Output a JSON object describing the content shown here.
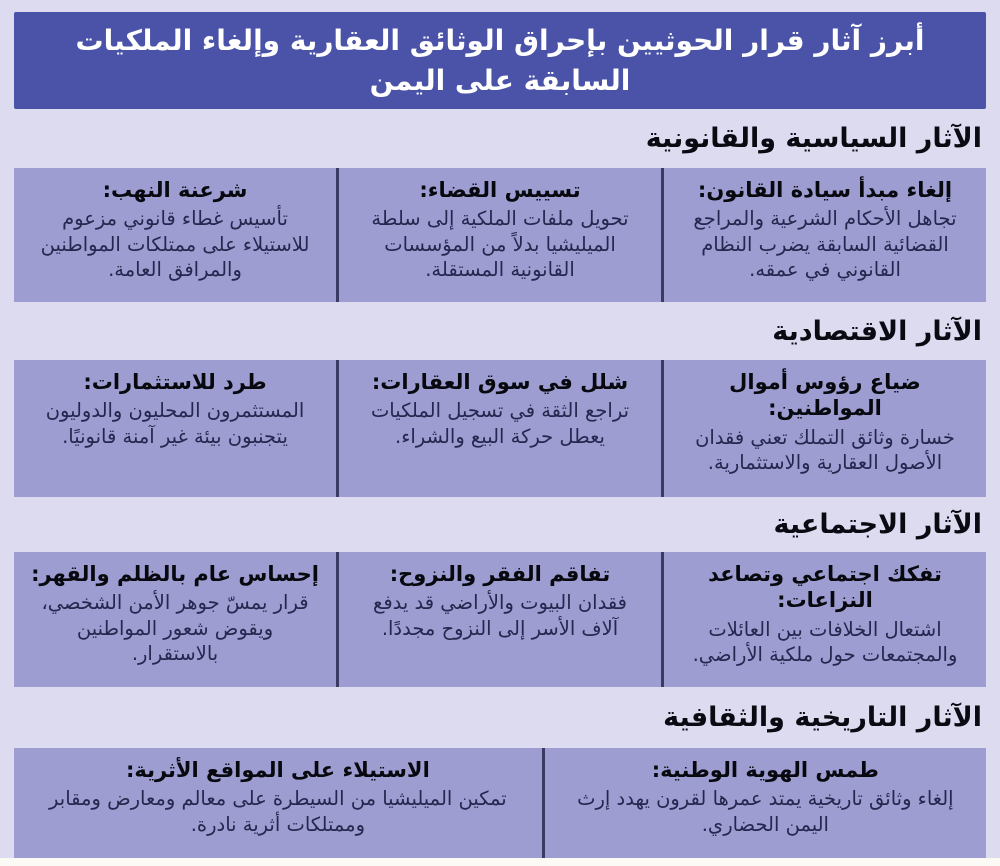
{
  "header": {
    "title": "أبرز آثار قرار الحوثيين بإحراق الوثائق العقارية وإلغاء الملكيات السابقة على اليمن"
  },
  "sections": [
    {
      "heading": "الآثار السياسية والقانونية",
      "cards": [
        {
          "title": "إلغاء مبدأ سيادة القانون:",
          "body": "تجاهل الأحكام الشرعية والمراجع القضائية السابقة يضرب النظام القانوني في عمقه."
        },
        {
          "title": "تسييس القضاء:",
          "body": "تحويل ملفات الملكية إلى سلطة الميليشيا بدلاً من المؤسسات القانونية المستقلة."
        },
        {
          "title": "شرعنة النهب:",
          "body": "تأسيس غطاء قانوني مزعوم للاستيلاء على ممتلكات المواطنين والمرافق العامة."
        }
      ]
    },
    {
      "heading": "الآثار الاقتصادية",
      "cards": [
        {
          "title": "ضياع رؤوس أموال المواطنين:",
          "body": "خسارة وثائق التملك تعني فقدان الأصول العقارية والاستثمارية."
        },
        {
          "title": "شلل في سوق العقارات:",
          "body": "تراجع الثقة في تسجيل الملكيات يعطل حركة البيع والشراء."
        },
        {
          "title": "طرد للاستثمارات:",
          "body": "المستثمرون المحليون والدوليون يتجنبون بيئة غير آمنة قانونيًا."
        }
      ]
    },
    {
      "heading": "الآثار الاجتماعية",
      "cards": [
        {
          "title": "تفكك اجتماعي وتصاعد النزاعات:",
          "body": "اشتعال الخلافات بين العائلات والمجتمعات حول ملكية الأراضي."
        },
        {
          "title": "تفاقم الفقر والنزوح:",
          "body": "فقدان البيوت والأراضي قد يدفع آلاف الأسر إلى النزوح مجددًا."
        },
        {
          "title": "إحساس عام بالظلم والقهر:",
          "body": "قرار يمسّ جوهر الأمن الشخصي، ويقوض شعور المواطنين بالاستقرار."
        }
      ]
    },
    {
      "heading": "الآثار التاريخية والثقافية",
      "cards": [
        {
          "title": "طمس الهوية الوطنية:",
          "body": "إلغاء وثائق تاريخية يمتد عمرها لقرون يهدد إرث اليمن الحضاري."
        },
        {
          "title": "الاستيلاء على المواقع الأثرية:",
          "body": "تمكين الميليشيا من السيطرة على معالم ومعارض ومقابر وممتلكات أثرية نادرة."
        }
      ]
    }
  ],
  "colors": {
    "page_background": "#dcdbef",
    "header_background": "#4a53a8",
    "header_text": "#ffffff",
    "card_background": "#9d9dd2",
    "card_divider": "#3a3a63",
    "heading_text": "#0a0a12",
    "card_body_text": "#26264e"
  }
}
